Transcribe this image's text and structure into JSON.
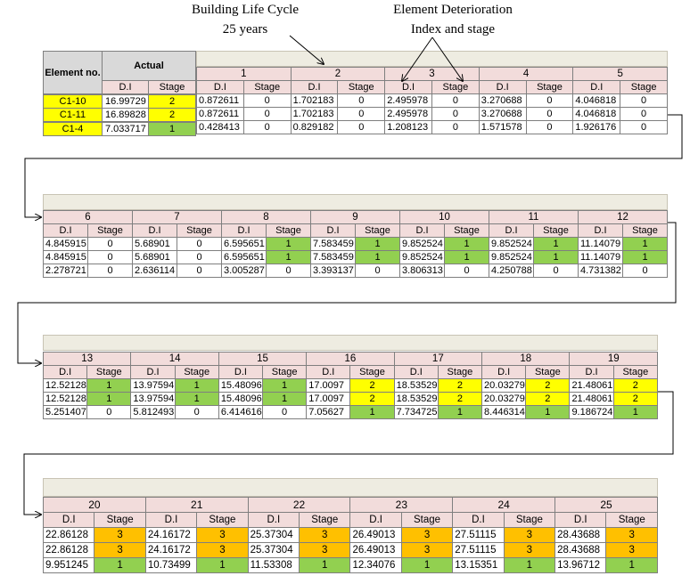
{
  "annotations": {
    "life_cycle_line1": "Building Life Cycle",
    "life_cycle_line2": "25 years",
    "deterioration_line1": "Element Deterioration",
    "deterioration_line2": "Index and stage"
  },
  "header": {
    "element_no": "Element no.",
    "actual": "Actual",
    "di": "D.I",
    "stage": "Stage"
  },
  "elements": [
    "C1-10",
    "C1-11",
    "C1-4"
  ],
  "actual": [
    {
      "di": "16.99729",
      "stage": "2"
    },
    {
      "di": "16.89828",
      "stage": "2"
    },
    {
      "di": "7.033717",
      "stage": "1"
    }
  ],
  "blocks": [
    {
      "years": [
        {
          "label": "1",
          "rows": [
            {
              "di": "0.872611",
              "stage": "0"
            },
            {
              "di": "0.872611",
              "stage": "0"
            },
            {
              "di": "0.428413",
              "stage": "0"
            }
          ]
        },
        {
          "label": "2",
          "rows": [
            {
              "di": "1.702183",
              "stage": "0"
            },
            {
              "di": "1.702183",
              "stage": "0"
            },
            {
              "di": "0.829182",
              "stage": "0"
            }
          ]
        },
        {
          "label": "3",
          "rows": [
            {
              "di": "2.495978",
              "stage": "0"
            },
            {
              "di": "2.495978",
              "stage": "0"
            },
            {
              "di": "1.208123",
              "stage": "0"
            }
          ]
        },
        {
          "label": "4",
          "rows": [
            {
              "di": "3.270688",
              "stage": "0"
            },
            {
              "di": "3.270688",
              "stage": "0"
            },
            {
              "di": "1.571578",
              "stage": "0"
            }
          ]
        },
        {
          "label": "5",
          "rows": [
            {
              "di": "4.046818",
              "stage": "0"
            },
            {
              "di": "4.046818",
              "stage": "0"
            },
            {
              "di": "1.926176",
              "stage": "0"
            }
          ]
        }
      ]
    },
    {
      "years": [
        {
          "label": "6",
          "rows": [
            {
              "di": "4.845915",
              "stage": "0"
            },
            {
              "di": "4.845915",
              "stage": "0"
            },
            {
              "di": "2.278721",
              "stage": "0"
            }
          ]
        },
        {
          "label": "7",
          "rows": [
            {
              "di": "5.68901",
              "stage": "0"
            },
            {
              "di": "5.68901",
              "stage": "0"
            },
            {
              "di": "2.636114",
              "stage": "0"
            }
          ]
        },
        {
          "label": "8",
          "rows": [
            {
              "di": "6.595651",
              "stage": "1"
            },
            {
              "di": "6.595651",
              "stage": "1"
            },
            {
              "di": "3.005287",
              "stage": "0"
            }
          ]
        },
        {
          "label": "9",
          "rows": [
            {
              "di": "7.583459",
              "stage": "1"
            },
            {
              "di": "7.583459",
              "stage": "1"
            },
            {
              "di": "3.393137",
              "stage": "0"
            }
          ]
        },
        {
          "label": "10",
          "rows": [
            {
              "di": "9.852524",
              "stage": "1"
            },
            {
              "di": "9.852524",
              "stage": "1"
            },
            {
              "di": "3.806313",
              "stage": "0"
            }
          ]
        },
        {
          "label": "11",
          "rows": [
            {
              "di": "9.852524",
              "stage": "1"
            },
            {
              "di": "9.852524",
              "stage": "1"
            },
            {
              "di": "4.250788",
              "stage": "0"
            }
          ]
        },
        {
          "label": "12",
          "rows": [
            {
              "di": "11.14079",
              "stage": "1"
            },
            {
              "di": "11.14079",
              "stage": "1"
            },
            {
              "di": "4.731382",
              "stage": "0"
            }
          ]
        }
      ]
    },
    {
      "years": [
        {
          "label": "13",
          "rows": [
            {
              "di": "12.52128",
              "stage": "1"
            },
            {
              "di": "12.52128",
              "stage": "1"
            },
            {
              "di": "5.251407",
              "stage": "0"
            }
          ]
        },
        {
          "label": "14",
          "rows": [
            {
              "di": "13.97594",
              "stage": "1"
            },
            {
              "di": "13.97594",
              "stage": "1"
            },
            {
              "di": "5.812493",
              "stage": "0"
            }
          ]
        },
        {
          "label": "15",
          "rows": [
            {
              "di": "15.48096",
              "stage": "1"
            },
            {
              "di": "15.48096",
              "stage": "1"
            },
            {
              "di": "6.414616",
              "stage": "0"
            }
          ]
        },
        {
          "label": "16",
          "rows": [
            {
              "di": "17.0097",
              "stage": "2"
            },
            {
              "di": "17.0097",
              "stage": "2"
            },
            {
              "di": "7.05627",
              "stage": "1"
            }
          ]
        },
        {
          "label": "17",
          "rows": [
            {
              "di": "18.53529",
              "stage": "2"
            },
            {
              "di": "18.53529",
              "stage": "2"
            },
            {
              "di": "7.734725",
              "stage": "1"
            }
          ]
        },
        {
          "label": "18",
          "rows": [
            {
              "di": "20.03279",
              "stage": "2"
            },
            {
              "di": "20.03279",
              "stage": "2"
            },
            {
              "di": "8.446314",
              "stage": "1"
            }
          ]
        },
        {
          "label": "19",
          "rows": [
            {
              "di": "21.48061",
              "stage": "2"
            },
            {
              "di": "21.48061",
              "stage": "2"
            },
            {
              "di": "9.186724",
              "stage": "1"
            }
          ]
        }
      ]
    },
    {
      "years": [
        {
          "label": "20",
          "rows": [
            {
              "di": "22.86128",
              "stage": "3"
            },
            {
              "di": "22.86128",
              "stage": "3"
            },
            {
              "di": "9.951245",
              "stage": "1"
            }
          ]
        },
        {
          "label": "21",
          "rows": [
            {
              "di": "24.16172",
              "stage": "3"
            },
            {
              "di": "24.16172",
              "stage": "3"
            },
            {
              "di": "10.73499",
              "stage": "1"
            }
          ]
        },
        {
          "label": "22",
          "rows": [
            {
              "di": "25.37304",
              "stage": "3"
            },
            {
              "di": "25.37304",
              "stage": "3"
            },
            {
              "di": "11.53308",
              "stage": "1"
            }
          ]
        },
        {
          "label": "23",
          "rows": [
            {
              "di": "26.49013",
              "stage": "3"
            },
            {
              "di": "26.49013",
              "stage": "3"
            },
            {
              "di": "12.34076",
              "stage": "1"
            }
          ]
        },
        {
          "label": "24",
          "rows": [
            {
              "di": "27.51115",
              "stage": "3"
            },
            {
              "di": "27.51115",
              "stage": "3"
            },
            {
              "di": "13.15351",
              "stage": "1"
            }
          ]
        },
        {
          "label": "25",
          "rows": [
            {
              "di": "28.43688",
              "stage": "3"
            },
            {
              "di": "28.43688",
              "stage": "3"
            },
            {
              "di": "13.96712",
              "stage": "1"
            }
          ]
        }
      ]
    }
  ],
  "stage_colors": {
    "0": "",
    "1": "#92d050",
    "2": "#ffff00",
    "3": "#ffc000"
  }
}
